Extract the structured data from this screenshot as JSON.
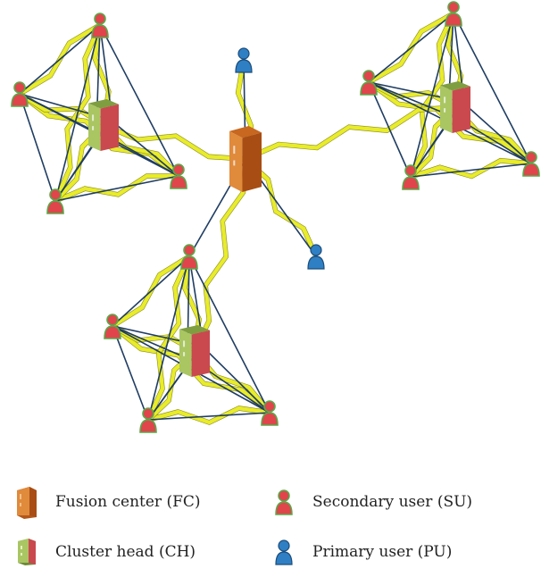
{
  "colors": {
    "link_line": "#1f3d63",
    "wireless_link": "#e8ec2a",
    "wireless_outline": "#8a8a20",
    "fusion_center": "#d9732a",
    "cluster_head": "#8db04a",
    "secondary_user": "#e0454c",
    "secondary_user_outline": "#5aa84a",
    "primary_user": "#2f7fc4"
  },
  "icons": {
    "fusion_center": "server-tower-orange-icon",
    "cluster_head": "server-tower-green-icon",
    "secondary_user": "person-red-icon",
    "primary_user": "person-blue-icon"
  },
  "legend": {
    "fusion_center": "Fusion center (FC)",
    "cluster_head": "Cluster head (CH)",
    "secondary_user": "Secondary user (SU)",
    "primary_user": "Primary user (PU)"
  }
}
